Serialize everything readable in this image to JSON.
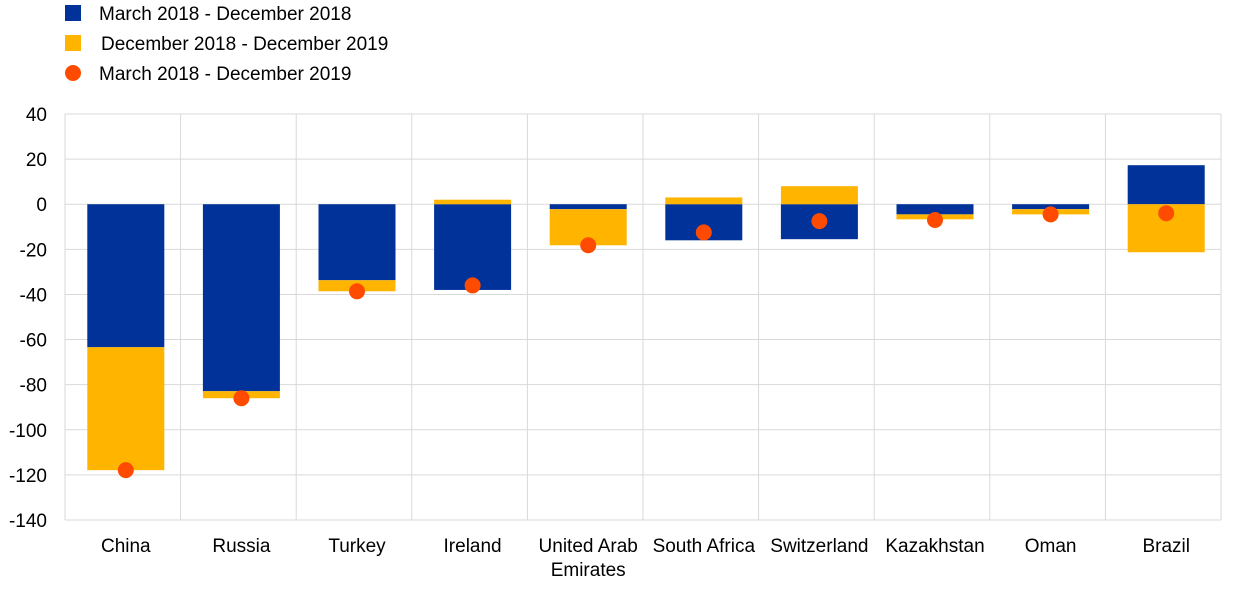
{
  "chart_data": {
    "type": "bar",
    "stacked": true,
    "title": "",
    "xlabel": "",
    "ylabel": "",
    "ylim": [
      -140,
      40
    ],
    "yticks": [
      40,
      20,
      0,
      -20,
      -40,
      -60,
      -80,
      -100,
      -120,
      -140
    ],
    "grid": true,
    "legend_position": "top-left",
    "categories": [
      [
        "China"
      ],
      [
        "Russia"
      ],
      [
        "Turkey"
      ],
      [
        "Ireland"
      ],
      [
        "United Arab",
        "Emirates"
      ],
      [
        "South Africa"
      ],
      [
        "Switzerland"
      ],
      [
        "Kazakhstan"
      ],
      [
        "Oman"
      ],
      [
        "Brazil"
      ]
    ],
    "series": [
      {
        "name": "March 2018 - December 2018",
        "kind": "bar",
        "color": "#003299",
        "values": [
          -63.4,
          -82.9,
          -33.7,
          -38,
          -2.2,
          -16,
          -15.5,
          -4.5,
          -2.2,
          17.3
        ]
      },
      {
        "name": "December 2018 - December 2019",
        "kind": "bar",
        "color": "#FFB400",
        "values": [
          -54.5,
          -3.1,
          -4.9,
          2,
          -16,
          3,
          8,
          -2.2,
          -2.3,
          -21.3
        ]
      },
      {
        "name": "March 2018 - December 2019",
        "kind": "dot",
        "color": "#FF4B00",
        "values": [
          -117.9,
          -86,
          -38.6,
          -36,
          -18.2,
          -12.5,
          -7.5,
          -7,
          -4.5,
          -4
        ]
      }
    ]
  }
}
